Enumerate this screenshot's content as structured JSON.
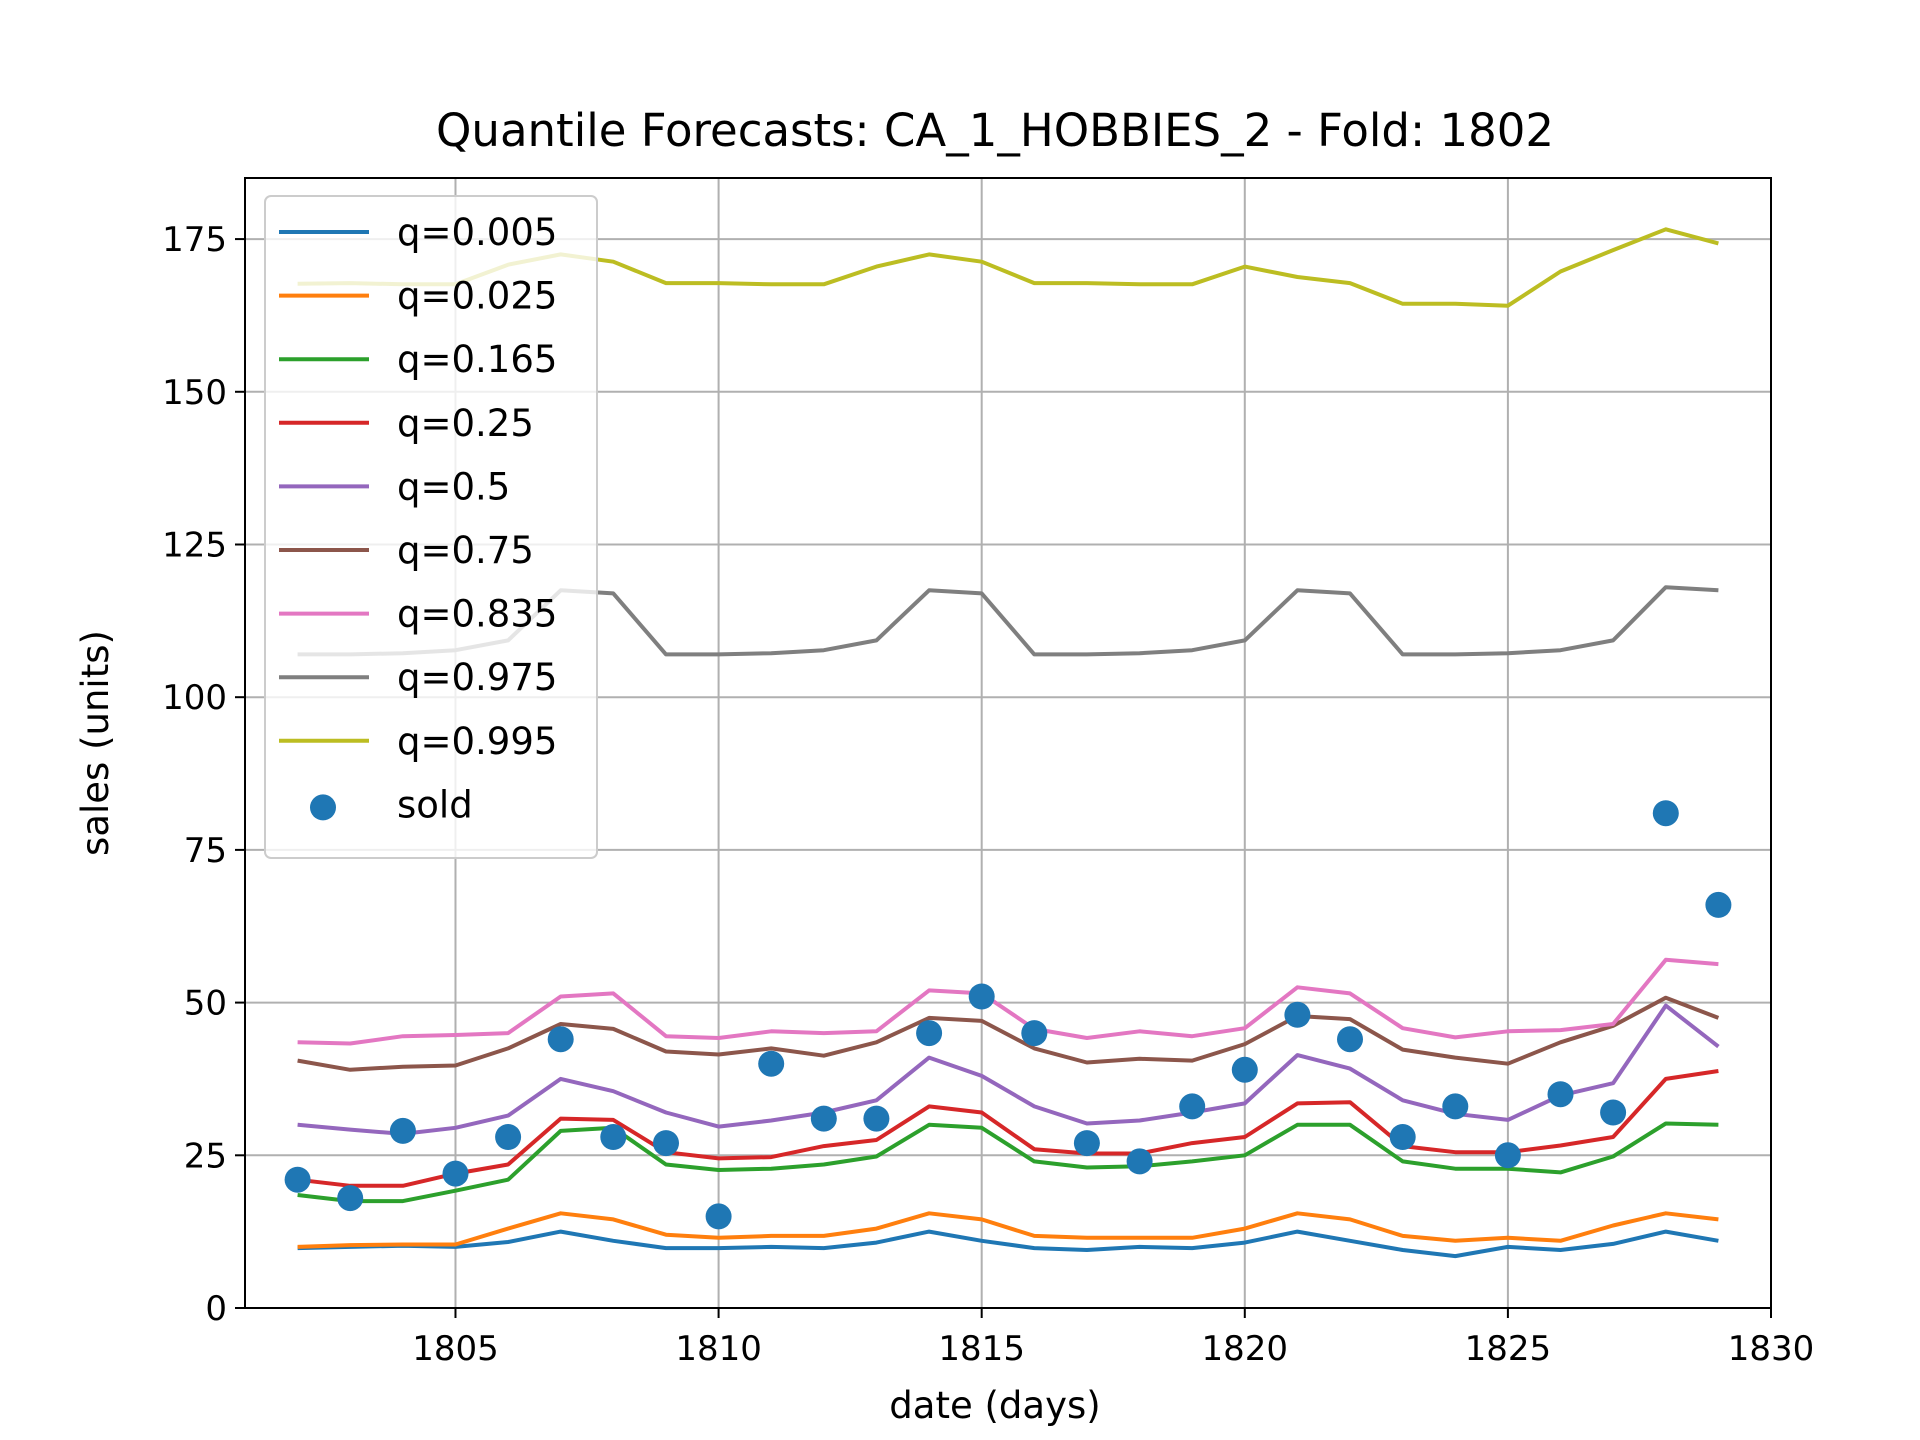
{
  "chart_data": {
    "type": "line",
    "title": "Quantile Forecasts: CA_1_HOBBIES_2 - Fold: 1802",
    "xlabel": "date (days)",
    "ylabel": "sales (units)",
    "xlim": [
      1801,
      1830
    ],
    "ylim": [
      0,
      185
    ],
    "xticks": [
      1805,
      1810,
      1815,
      1820,
      1825,
      1830
    ],
    "yticks": [
      0,
      25,
      50,
      75,
      100,
      125,
      150,
      175
    ],
    "xtick_labels": [
      "1805",
      "1810",
      "1815",
      "1820",
      "1825",
      "1830"
    ],
    "ytick_labels": [
      "0",
      "25",
      "50",
      "75",
      "100",
      "125",
      "150",
      "175"
    ],
    "grid": true,
    "legend_position": "top-left",
    "x": [
      1802,
      1803,
      1804,
      1805,
      1806,
      1807,
      1808,
      1809,
      1810,
      1811,
      1812,
      1813,
      1814,
      1815,
      1816,
      1817,
      1818,
      1819,
      1820,
      1821,
      1822,
      1823,
      1824,
      1825,
      1826,
      1827,
      1828,
      1829
    ],
    "series": [
      {
        "name": "q=0.005",
        "color": "#1f77b4",
        "values": [
          9.8,
          10,
          10.2,
          10,
          10.8,
          12.5,
          11,
          9.8,
          9.8,
          10,
          9.8,
          10.7,
          12.5,
          11,
          9.8,
          9.5,
          10,
          9.8,
          10.7,
          12.5,
          11,
          9.5,
          8.5,
          10,
          9.5,
          10.5,
          12.5,
          11
        ]
      },
      {
        "name": "q=0.025",
        "color": "#ff7f0e",
        "values": [
          10,
          10.3,
          10.4,
          10.4,
          13,
          15.5,
          14.5,
          12,
          11.5,
          11.8,
          11.8,
          13,
          15.5,
          14.5,
          11.8,
          11.5,
          11.5,
          11.5,
          13,
          15.5,
          14.5,
          11.8,
          11,
          11.5,
          11,
          13.5,
          15.5,
          14.5
        ]
      },
      {
        "name": "q=0.165",
        "color": "#2ca02c",
        "values": [
          18.5,
          17.5,
          17.5,
          19.2,
          21,
          29,
          29.5,
          23.5,
          22.6,
          22.8,
          23.5,
          24.8,
          30,
          29.5,
          24,
          23,
          23.2,
          24,
          25,
          30,
          30,
          24,
          22.8,
          22.8,
          22.2,
          24.8,
          30.2,
          30
        ]
      },
      {
        "name": "q=0.25",
        "color": "#d62728",
        "values": [
          21,
          20,
          20,
          22,
          23.5,
          31,
          30.8,
          25.5,
          24.5,
          24.7,
          26.5,
          27.5,
          33,
          32,
          26,
          25.3,
          25.3,
          27,
          28,
          33.5,
          33.7,
          26.5,
          25.5,
          25.5,
          26.6,
          28,
          37.5,
          38.8
        ]
      },
      {
        "name": "q=0.5",
        "color": "#9467bd",
        "values": [
          30,
          29.2,
          28.5,
          29.5,
          31.5,
          37.5,
          35.5,
          32,
          29.7,
          30.7,
          32,
          34,
          41,
          38,
          33,
          30.2,
          30.7,
          32,
          33.5,
          41.4,
          39.2,
          34,
          31.8,
          30.8,
          34.8,
          36.8,
          49.5,
          42.8
        ]
      },
      {
        "name": "q=0.75",
        "color": "#8c564b",
        "values": [
          40.5,
          39,
          39.5,
          39.7,
          42.5,
          46.5,
          45.7,
          42,
          41.5,
          42.5,
          41.3,
          43.5,
          47.5,
          47,
          42.5,
          40.2,
          40.8,
          40.5,
          43.2,
          47.8,
          47.3,
          42.3,
          41,
          40,
          43.5,
          46.2,
          50.8,
          47.5
        ]
      },
      {
        "name": "q=0.835",
        "color": "#e377c2",
        "values": [
          43.5,
          43.3,
          44.5,
          44.7,
          45,
          51,
          51.5,
          44.5,
          44.2,
          45.3,
          45,
          45.3,
          52,
          51.5,
          45.7,
          44.2,
          45.3,
          44.5,
          45.8,
          52.5,
          51.5,
          45.8,
          44.3,
          45.3,
          45.5,
          46.5,
          57,
          56.3
        ]
      },
      {
        "name": "q=0.975",
        "color": "#7f7f7f",
        "values": [
          107,
          107,
          107.2,
          107.7,
          109.3,
          117.5,
          117,
          107,
          107,
          107.2,
          107.7,
          109.3,
          117.5,
          117,
          107,
          107,
          107.2,
          107.7,
          109.3,
          117.5,
          117,
          107,
          107,
          107.2,
          107.7,
          109.3,
          118,
          117.5
        ]
      },
      {
        "name": "q=0.995",
        "color": "#bcbd22",
        "values": [
          167.7,
          167.8,
          167.6,
          167.6,
          170.8,
          172.5,
          171.3,
          167.8,
          167.8,
          167.6,
          167.6,
          170.5,
          172.5,
          171.3,
          167.8,
          167.8,
          167.6,
          167.6,
          170.5,
          168.8,
          167.8,
          164.4,
          164.4,
          164.1,
          169.7,
          173.2,
          176.6,
          174.3
        ]
      }
    ],
    "scatter": {
      "name": "sold",
      "color": "#1f77b4",
      "values": [
        21,
        18,
        29,
        22,
        28,
        44,
        28,
        27,
        15,
        40,
        31,
        31,
        45,
        51,
        45,
        27,
        24,
        33,
        39,
        48,
        44,
        28,
        33,
        25,
        35,
        32,
        81,
        66
      ]
    }
  }
}
